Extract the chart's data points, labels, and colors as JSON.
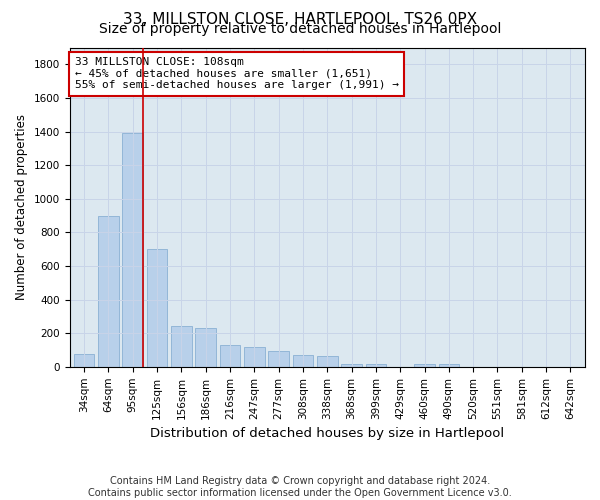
{
  "title1": "33, MILLSTON CLOSE, HARTLEPOOL, TS26 0PX",
  "title2": "Size of property relative to detached houses in Hartlepool",
  "xlabel": "Distribution of detached houses by size in Hartlepool",
  "ylabel": "Number of detached properties",
  "categories": [
    "34sqm",
    "64sqm",
    "95sqm",
    "125sqm",
    "156sqm",
    "186sqm",
    "216sqm",
    "247sqm",
    "277sqm",
    "308sqm",
    "338sqm",
    "368sqm",
    "399sqm",
    "429sqm",
    "460sqm",
    "490sqm",
    "520sqm",
    "551sqm",
    "581sqm",
    "612sqm",
    "642sqm"
  ],
  "values": [
    75,
    900,
    1390,
    700,
    240,
    230,
    130,
    118,
    95,
    68,
    62,
    18,
    18,
    0,
    18,
    18,
    0,
    0,
    0,
    0,
    0
  ],
  "bar_color": "#b8d0ea",
  "bar_edge_color": "#8ab0d4",
  "annotation_text": "33 MILLSTON CLOSE: 108sqm\n← 45% of detached houses are smaller (1,651)\n55% of semi-detached houses are larger (1,991) →",
  "annotation_box_color": "#ffffff",
  "annotation_box_edge_color": "#cc0000",
  "vline_color": "#cc0000",
  "ylim": [
    0,
    1900
  ],
  "yticks": [
    0,
    200,
    400,
    600,
    800,
    1000,
    1200,
    1400,
    1600,
    1800
  ],
  "grid_color": "#c8d4e8",
  "background_color": "#dce8f0",
  "footer": "Contains HM Land Registry data © Crown copyright and database right 2024.\nContains public sector information licensed under the Open Government Licence v3.0.",
  "title1_fontsize": 11,
  "title2_fontsize": 10,
  "xlabel_fontsize": 9.5,
  "ylabel_fontsize": 8.5,
  "tick_fontsize": 7.5,
  "annotation_fontsize": 8,
  "footer_fontsize": 7
}
